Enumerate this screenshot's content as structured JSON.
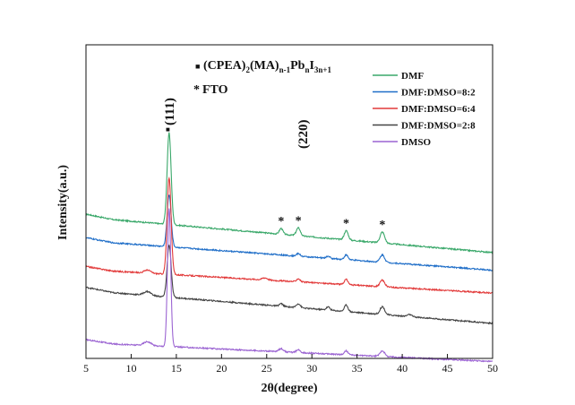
{
  "chart_data": {
    "type": "line",
    "xlabel": "2θ(degree)",
    "ylabel": "Intensity(a.u.)",
    "xlim": [
      5,
      50
    ],
    "xticks": [
      "5",
      "10",
      "15",
      "20",
      "25",
      "30",
      "35",
      "40",
      "45",
      "50"
    ],
    "legend_position": "top-right",
    "grid": false,
    "series": [
      {
        "name": "DMF",
        "color": "#3aa86a",
        "baseline": 5,
        "drift": -0.03,
        "peaks": [
          [
            14.2,
            3.5,
            0.22
          ],
          [
            26.6,
            0.22,
            0.2
          ],
          [
            28.5,
            0.3,
            0.22
          ],
          [
            33.8,
            0.35,
            0.22
          ],
          [
            37.8,
            0.42,
            0.25
          ]
        ]
      },
      {
        "name": "DMF:DMSO=8:2",
        "color": "#1f6ec8",
        "baseline": 4.1,
        "drift": -0.025,
        "peaks": [
          [
            14.2,
            2.0,
            0.22
          ],
          [
            28.5,
            0.1,
            0.2
          ],
          [
            31.8,
            0.08,
            0.2
          ],
          [
            33.8,
            0.18,
            0.2
          ],
          [
            37.8,
            0.28,
            0.25
          ]
        ]
      },
      {
        "name": "DMF:DMSO=6:4",
        "color": "#e23a3a",
        "baseline": 3.0,
        "drift": -0.02,
        "peaks": [
          [
            11.8,
            0.12,
            0.35
          ],
          [
            14.2,
            3.7,
            0.22
          ],
          [
            24.8,
            0.08,
            0.3
          ],
          [
            28.5,
            0.12,
            0.2
          ],
          [
            33.8,
            0.2,
            0.2
          ],
          [
            37.8,
            0.25,
            0.25
          ]
        ]
      },
      {
        "name": "DMF:DMSO=2:8",
        "color": "#444444",
        "baseline": 2.2,
        "drift": -0.028,
        "peaks": [
          [
            11.8,
            0.15,
            0.4
          ],
          [
            14.2,
            2.0,
            0.22
          ],
          [
            26.6,
            0.1,
            0.2
          ],
          [
            28.5,
            0.15,
            0.22
          ],
          [
            31.8,
            0.12,
            0.2
          ],
          [
            33.8,
            0.25,
            0.2
          ],
          [
            37.8,
            0.3,
            0.25
          ],
          [
            40.8,
            0.08,
            0.25
          ]
        ]
      },
      {
        "name": "DMSO",
        "color": "#9b64d2",
        "baseline": 0.2,
        "drift": -0.016,
        "peaks": [
          [
            11.8,
            0.15,
            0.4
          ],
          [
            14.2,
            5.3,
            0.18
          ],
          [
            26.6,
            0.12,
            0.25
          ],
          [
            28.5,
            0.1,
            0.22
          ],
          [
            33.8,
            0.15,
            0.2
          ],
          [
            37.8,
            0.22,
            0.25
          ]
        ]
      }
    ],
    "annotations": {
      "legend_phase_label": "(CPEA)2(MA)n-1PbnI3n+1",
      "phase_main": "(CPEA)",
      "phase_sub1": "2",
      "phase_mid1": "(MA)",
      "phase_sub2": "n-1",
      "phase_mid2": "Pb",
      "phase_sub3": "n",
      "phase_mid3": "I",
      "phase_sub4": "3n+1",
      "fto_label": "FTO",
      "peak_111": "(111)",
      "peak_220": "(220)",
      "square_marker": "■",
      "star_marker": "*",
      "star_positions_2theta": [
        26.6,
        28.5,
        33.8,
        37.8
      ]
    }
  }
}
